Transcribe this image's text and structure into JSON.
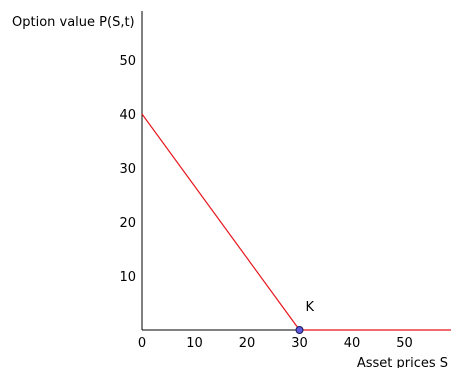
{
  "chart_data": {
    "type": "line",
    "title": "",
    "ylabel": "Option value P(S,t)",
    "xlabel": "Asset prices S",
    "xlim": [
      0,
      59
    ],
    "ylim": [
      0,
      59
    ],
    "xticks": [
      0,
      10,
      20,
      30,
      40,
      50
    ],
    "yticks": [
      10,
      20,
      30,
      40,
      50
    ],
    "grid": false,
    "series": [
      {
        "color": "#e8141c",
        "x": [
          0,
          30,
          59
        ],
        "y": [
          40,
          0,
          0
        ]
      }
    ],
    "annotations": [
      {
        "text": "K",
        "x": 30,
        "y": 0,
        "marker_color": "#5a5adc"
      }
    ]
  }
}
